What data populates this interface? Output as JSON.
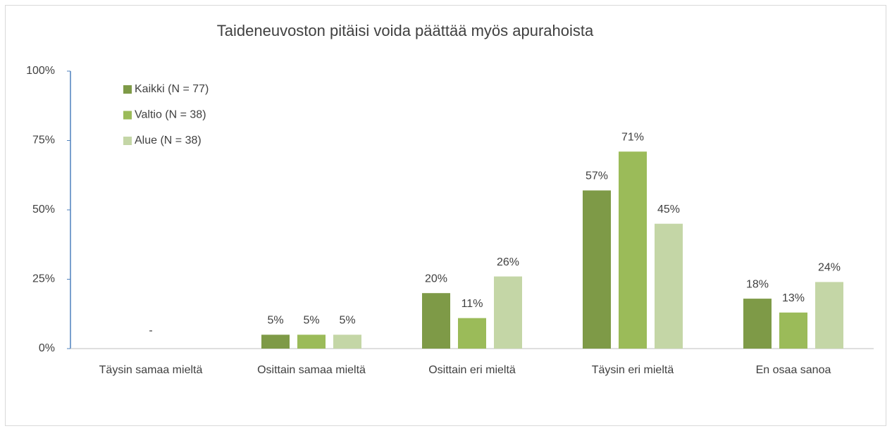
{
  "chart_data": {
    "type": "bar",
    "title": "Taideneuvoston pitäisi voida päättää myös apurahoista",
    "categories": [
      "Täysin samaa mieltä",
      "Osittain samaa mieltä",
      "Osittain eri mieltä",
      "Täysin eri mieltä",
      "En osaa sanoa"
    ],
    "series": [
      {
        "name": "Kaikki (N = 77)",
        "color": "#7e9a47",
        "values": [
          0,
          5,
          20,
          57,
          18
        ],
        "value_labels": [
          null,
          "5%",
          "20%",
          "57%",
          "18%"
        ]
      },
      {
        "name": "Valtio (N = 38)",
        "color": "#9bbb59",
        "values": [
          0,
          5,
          11,
          71,
          13
        ],
        "value_labels": [
          "-",
          "5%",
          "11%",
          "71%",
          "13%"
        ]
      },
      {
        "name": "Alue (N = 38)",
        "color": "#c4d6a6",
        "values": [
          0,
          5,
          26,
          45,
          24
        ],
        "value_labels": [
          null,
          "5%",
          "26%",
          "45%",
          "24%"
        ]
      }
    ],
    "ylim": [
      0,
      100
    ],
    "yticks": [
      {
        "value": 0,
        "label": "0%"
      },
      {
        "value": 25,
        "label": "25%"
      },
      {
        "value": 50,
        "label": "50%"
      },
      {
        "value": 75,
        "label": "75%"
      },
      {
        "value": 100,
        "label": "100%"
      }
    ],
    "grid": false,
    "legend": "top-left"
  }
}
